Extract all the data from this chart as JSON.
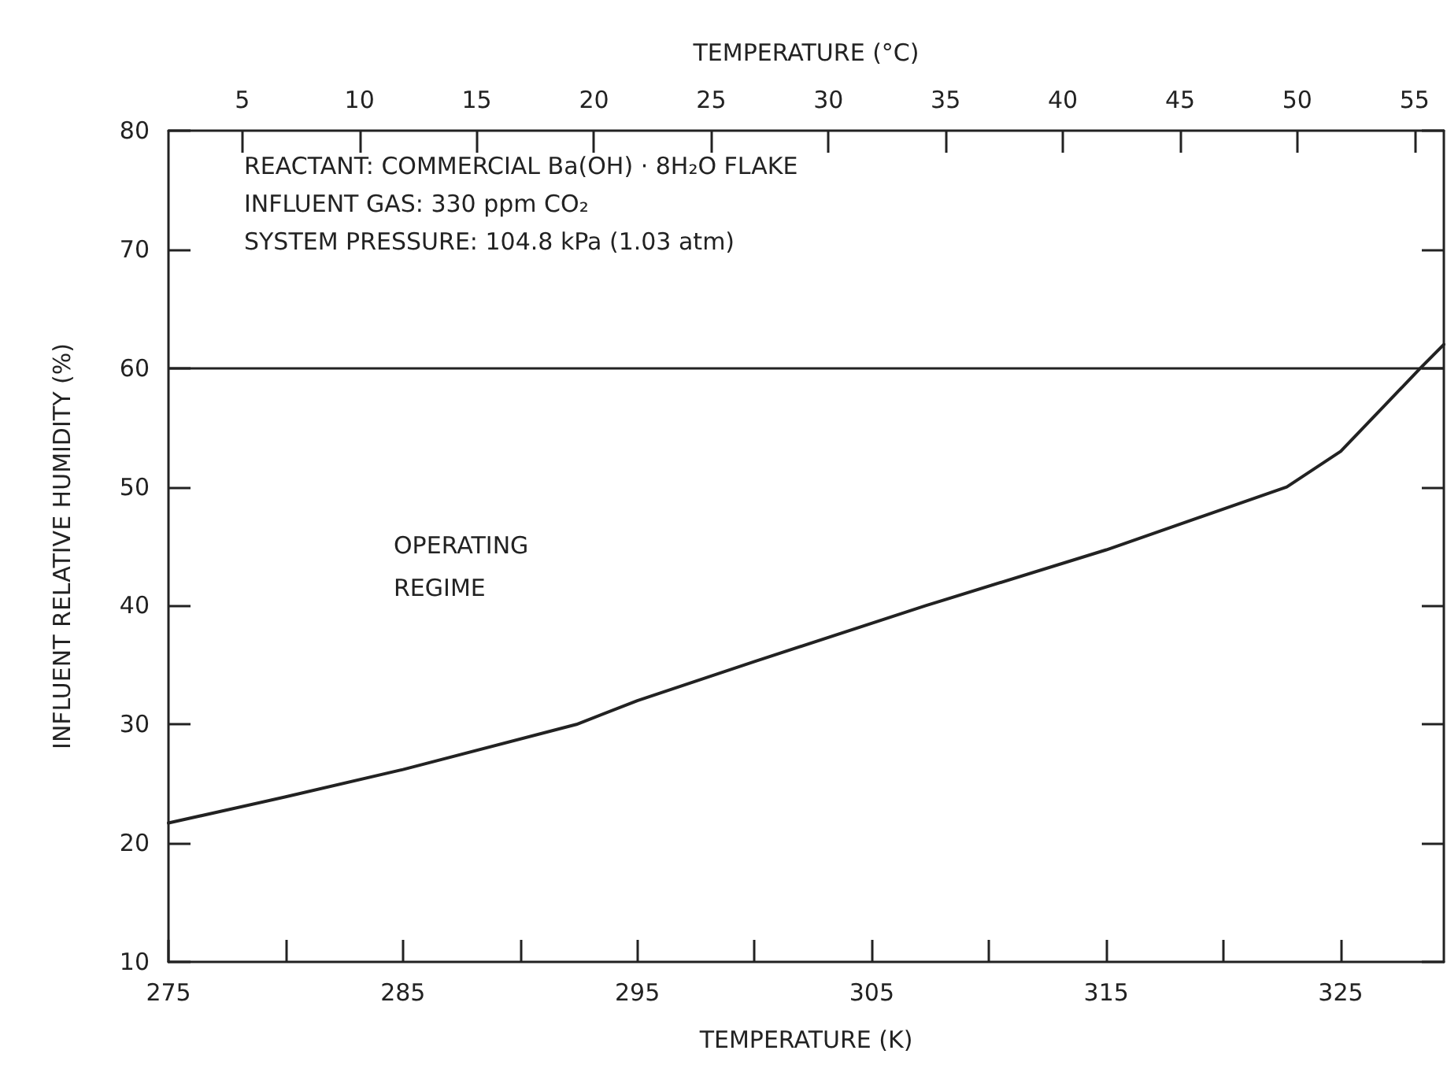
{
  "chart_data": {
    "type": "line",
    "xlabel": "TEMPERATURE (K)",
    "x2label": "TEMPERATURE (°C)",
    "ylabel": "INFLUENT RELATIVE HUMIDITY (%)",
    "xlim": [
      275,
      329.4
    ],
    "xticks": [
      275,
      {
        "value": 280,
        "label": null
      },
      285,
      {
        "value": 290,
        "label": null
      },
      295,
      {
        "value": 300,
        "label": null
      },
      305,
      {
        "value": 310,
        "label": null
      },
      315,
      {
        "value": 320,
        "label": null
      },
      325
    ],
    "x2lim": [
      1.85,
      56.25
    ],
    "x2ticks": [
      5,
      10,
      15,
      20,
      25,
      30,
      35,
      40,
      45,
      50,
      55
    ],
    "ylim": [
      10,
      80
    ],
    "yticks": [
      10,
      20,
      30,
      40,
      50,
      60,
      70,
      80
    ],
    "grid": false,
    "marker": "none",
    "line_style": "solid",
    "series": [
      {
        "color": "#222222",
        "x": [
          275,
          280,
          285,
          292.4,
          295,
          300,
          307.3,
          315,
          322.7,
          325,
          328.4,
          329.4
        ],
        "values": [
          21.7,
          23.9,
          26.2,
          30,
          32,
          35.3,
          40,
          44.7,
          50,
          53,
          60,
          62
        ]
      }
    ],
    "ref_lines": [
      {
        "axis": "y",
        "value": 60,
        "color": "#222222"
      }
    ],
    "annotations": [
      "REACTANT: COMMERCIAL Ba(OH) · 8H₂O FLAKE",
      "INFLUENT GAS: 330 ppm CO₂",
      "SYSTEM PRESSURE: 104.8 kPa (1.03 atm)",
      "OPERATING\nREGIME"
    ]
  }
}
